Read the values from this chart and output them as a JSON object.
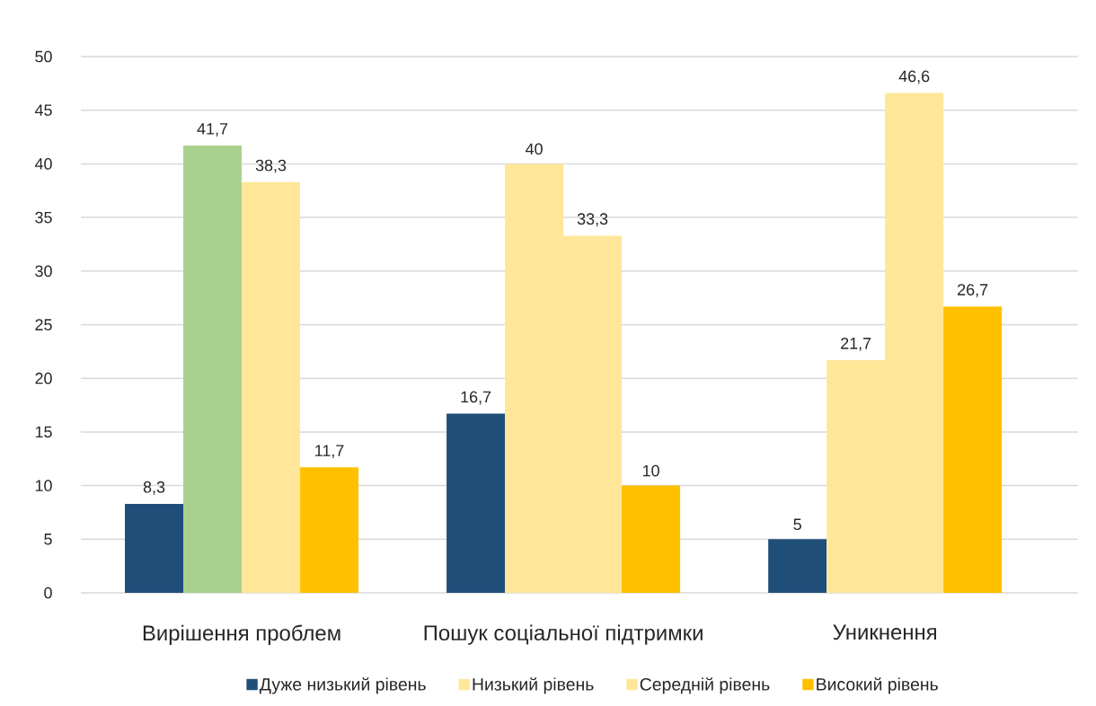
{
  "chart_data": {
    "type": "bar",
    "categories": [
      "Вирішення проблем",
      "Пошук соціальної підтримки",
      "Уникнення"
    ],
    "series": [
      {
        "name": "Дуже низький рівень",
        "color": "#1f4e79",
        "values": [
          8.3,
          16.7,
          5
        ],
        "value_labels": [
          "8,3",
          "16,7",
          "5"
        ]
      },
      {
        "name": "Низький рівень",
        "color": "#ffe699",
        "colors": [
          "#a9d18e",
          "#ffe699",
          "#ffe699"
        ],
        "values": [
          41.7,
          40,
          21.7
        ],
        "value_labels": [
          "41,7",
          "40",
          "21,7"
        ]
      },
      {
        "name": "Середній рівень",
        "color": "#ffe699",
        "values": [
          38.3,
          33.3,
          46.6
        ],
        "value_labels": [
          "38,3",
          "33,3",
          "46,6"
        ]
      },
      {
        "name": "Високий рівень",
        "color": "#ffc000",
        "values": [
          11.7,
          10,
          26.7
        ],
        "value_labels": [
          "11,7",
          "10",
          "26,7"
        ]
      }
    ],
    "ylim": [
      0,
      50
    ],
    "yticks": [
      0,
      5,
      10,
      15,
      20,
      25,
      30,
      35,
      40,
      45,
      50
    ],
    "grid": "y",
    "legend": "bottom"
  }
}
